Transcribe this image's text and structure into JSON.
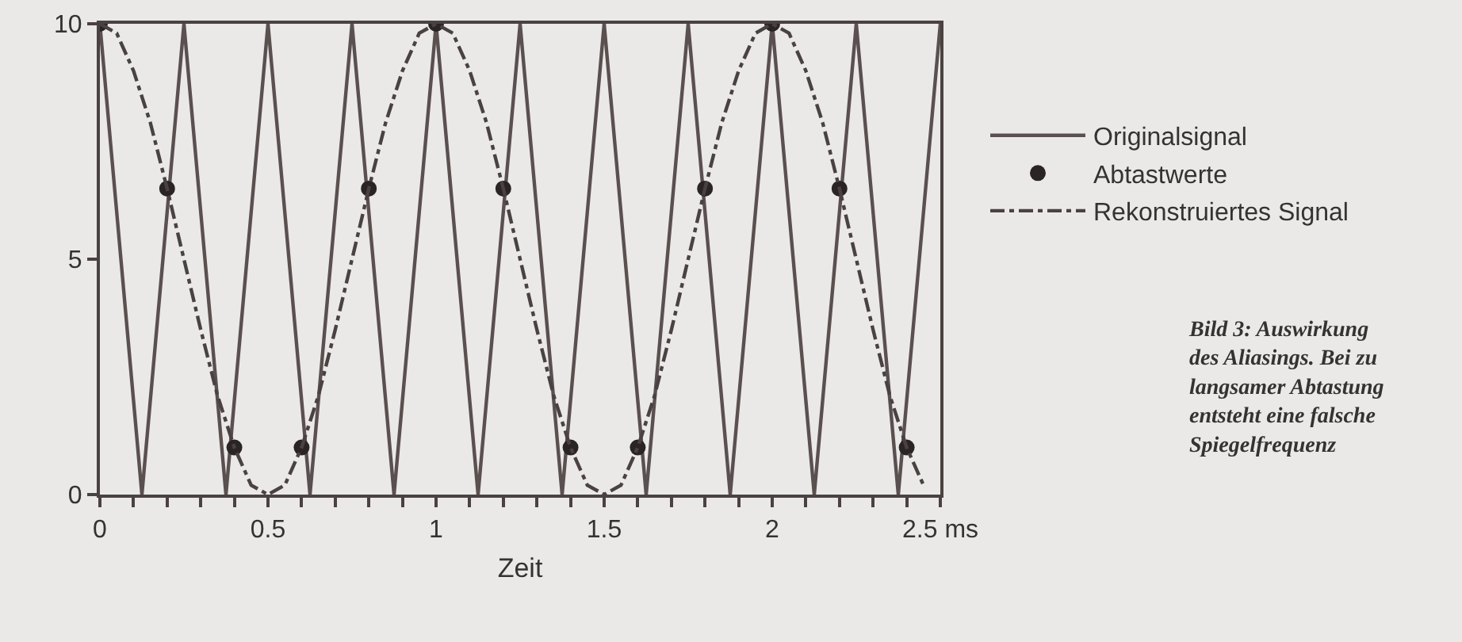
{
  "chart_data": {
    "type": "line",
    "xlabel": "Zeit",
    "xlim": [
      0,
      2.5
    ],
    "xticks": [
      0,
      {
        "value": 0.1,
        "label": null
      },
      {
        "value": 0.2,
        "label": null
      },
      {
        "value": 0.3,
        "label": null
      },
      {
        "value": 0.4,
        "label": null
      },
      0.5,
      {
        "value": 0.6,
        "label": null
      },
      {
        "value": 0.7,
        "label": null
      },
      {
        "value": 0.8,
        "label": null
      },
      {
        "value": 0.9,
        "label": null
      },
      1,
      {
        "value": 1.1,
        "label": null
      },
      {
        "value": 1.2,
        "label": null
      },
      {
        "value": 1.3,
        "label": null
      },
      {
        "value": 1.4,
        "label": null
      },
      1.5,
      {
        "value": 1.6,
        "label": null
      },
      {
        "value": 1.7,
        "label": null
      },
      {
        "value": 1.8,
        "label": null
      },
      {
        "value": 1.9,
        "label": null
      },
      2,
      {
        "value": 2.1,
        "label": null
      },
      {
        "value": 2.2,
        "label": null
      },
      {
        "value": 2.3,
        "label": null
      },
      {
        "value": 2.4,
        "label": null
      },
      {
        "value": 2.5,
        "label": "2.5 ms"
      }
    ],
    "ylim": [
      0,
      10
    ],
    "yticks": [
      0,
      5,
      10
    ],
    "grid": false,
    "legend": "right",
    "series": [
      {
        "name": "Originalsignal",
        "type": "line",
        "color": "#5a5050",
        "line_style": "solid",
        "marker": "none",
        "x": [
          0,
          0.0625,
          0.125,
          0.1875,
          0.25,
          0.3125,
          0.375,
          0.4375,
          0.5,
          0.5625,
          0.625,
          0.6875,
          0.75,
          0.8125,
          0.875,
          0.9375,
          1,
          1.0625,
          1.125,
          1.1875,
          1.25,
          1.3125,
          1.375,
          1.4375,
          1.5,
          1.5625,
          1.625,
          1.6875,
          1.75,
          1.8125,
          1.875,
          1.9375,
          2,
          2.0625,
          2.125,
          2.1875,
          2.25,
          2.3125,
          2.375,
          2.4375,
          2.5
        ],
        "values": [
          10,
          5,
          0,
          5,
          10,
          5,
          0,
          5,
          10,
          5,
          0,
          5,
          10,
          5,
          0,
          5,
          10,
          5,
          0,
          5,
          10,
          5,
          0,
          5,
          10,
          5,
          0,
          5,
          10,
          5,
          0,
          5,
          10,
          5,
          0,
          5,
          10,
          5,
          0,
          5,
          10
        ]
      },
      {
        "name": "Abtastwerte",
        "type": "scatter",
        "color": "#2a2424",
        "marker": "circle",
        "x": [
          0,
          0.2,
          0.4,
          0.6,
          0.8,
          1,
          1.2,
          1.4,
          1.6,
          1.8,
          2,
          2.2,
          2.4
        ],
        "values": [
          10,
          6.5,
          1,
          1,
          6.5,
          10,
          6.5,
          1,
          1,
          6.5,
          10,
          6.5,
          1
        ]
      },
      {
        "name": "Rekonstruiertes Signal",
        "type": "line",
        "color": "#4a4242",
        "line_style": "dashed",
        "marker": "none",
        "x": [
          0,
          0.05,
          0.1,
          0.15,
          0.2,
          0.25,
          0.3,
          0.35,
          0.4,
          0.45,
          0.5,
          0.55,
          0.6,
          0.65,
          0.7,
          0.75,
          0.8,
          0.85,
          0.9,
          0.95,
          1,
          1.05,
          1.1,
          1.15,
          1.2,
          1.25,
          1.3,
          1.35,
          1.4,
          1.45,
          1.5,
          1.55,
          1.6,
          1.65,
          1.7,
          1.75,
          1.8,
          1.85,
          1.9,
          1.95,
          2,
          2.05,
          2.1,
          2.15,
          2.2,
          2.25,
          2.3,
          2.35,
          2.4,
          2.45
        ],
        "values": [
          10,
          9.8,
          9,
          7.9,
          6.5,
          5,
          3.5,
          2.1,
          1,
          0.2,
          0,
          0.2,
          1,
          2.1,
          3.5,
          5,
          6.5,
          7.9,
          9,
          9.8,
          10,
          9.8,
          9,
          7.9,
          6.5,
          5,
          3.5,
          2.1,
          1,
          0.2,
          0,
          0.2,
          1,
          2.1,
          3.5,
          5,
          6.5,
          7.9,
          9,
          9.8,
          10,
          9.8,
          9,
          7.9,
          6.5,
          5,
          3.5,
          2.1,
          1,
          0.2
        ]
      }
    ],
    "annotations": [
      "Bild 3: Auswirkung des Aliasings. Bei zu langsamer Abtastung entsteht eine falsche Spiegelfrequenz"
    ]
  }
}
